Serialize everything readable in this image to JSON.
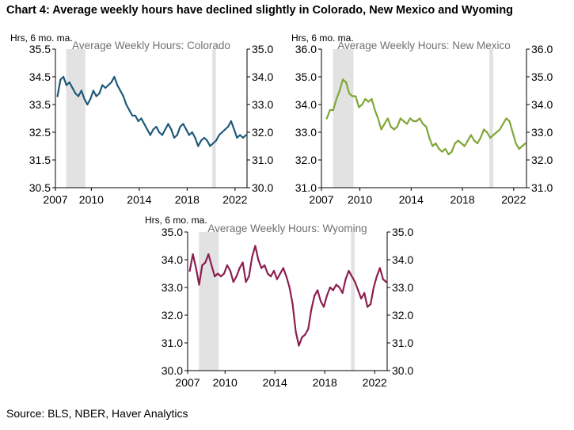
{
  "title": "Chart 4: Average weekly hours have declined slightly in Colorado, New Mexico and Wyoming",
  "source": "Source: BLS, NBER, Haver Analytics",
  "colors": {
    "recession": "#e2e2e2",
    "axis": "#000000"
  },
  "chart_data": [
    {
      "type": "line",
      "title": "Average Weekly Hours: Colorado",
      "ylabel": "Hrs, 6 mo. ma.",
      "ylim": [
        30.5,
        35.5
      ],
      "yticks_left": [
        "30.5",
        "31.5",
        "32.5",
        "33.5",
        "34.5",
        "35.5"
      ],
      "ylim_right": [
        30.0,
        35.0
      ],
      "yticks_right": [
        "30.0",
        "31.0",
        "32.0",
        "33.0",
        "34.0",
        "35.0"
      ],
      "xlim": [
        2007,
        2023
      ],
      "xticks": [
        "2007",
        "2010",
        "2014",
        "2018",
        "2022"
      ],
      "recessions": [
        [
          2007.9,
          2009.5
        ],
        [
          2020.1,
          2020.4
        ]
      ],
      "color": "#1f5a7a",
      "series": [
        {
          "x": [
            2007.17,
            2007.42,
            2007.67,
            2007.92,
            2008.17,
            2008.42,
            2008.67,
            2008.92,
            2009.17,
            2009.42,
            2009.67,
            2009.92,
            2010.17,
            2010.42,
            2010.67,
            2010.92,
            2011.17,
            2011.42,
            2011.67,
            2011.92,
            2012.17,
            2012.42,
            2012.67,
            2012.92,
            2013.17,
            2013.42,
            2013.67,
            2013.92,
            2014.17,
            2014.42,
            2014.67,
            2014.92,
            2015.17,
            2015.42,
            2015.67,
            2015.92,
            2016.17,
            2016.42,
            2016.67,
            2016.92,
            2017.17,
            2017.42,
            2017.67,
            2017.92,
            2018.17,
            2018.42,
            2018.67,
            2018.92,
            2019.17,
            2019.42,
            2019.67,
            2019.92,
            2020.17,
            2020.42,
            2020.67,
            2020.92,
            2021.17,
            2021.42,
            2021.67,
            2021.92,
            2022.17,
            2022.42,
            2022.67,
            2022.92
          ],
          "y": [
            33.8,
            34.4,
            34.5,
            34.2,
            34.3,
            34.1,
            33.9,
            33.8,
            34.0,
            33.7,
            33.5,
            33.7,
            34.0,
            33.8,
            33.9,
            34.2,
            34.1,
            34.2,
            34.3,
            34.5,
            34.2,
            34.0,
            33.8,
            33.5,
            33.3,
            33.1,
            33.1,
            32.9,
            33.0,
            32.8,
            32.6,
            32.4,
            32.6,
            32.7,
            32.5,
            32.4,
            32.6,
            32.8,
            32.6,
            32.3,
            32.4,
            32.7,
            32.8,
            32.6,
            32.4,
            32.5,
            32.3,
            32.0,
            32.2,
            32.3,
            32.2,
            32.0,
            32.1,
            32.2,
            32.4,
            32.5,
            32.6,
            32.7,
            32.9,
            32.6,
            32.3,
            32.4,
            32.3,
            32.4
          ]
        }
      ]
    },
    {
      "type": "line",
      "title": "Average Weekly Hours: New Mexico",
      "ylabel": "Hrs, 6 mo. ma.",
      "ylim": [
        31.0,
        36.0
      ],
      "yticks_left": [
        "31.0",
        "32.0",
        "33.0",
        "34.0",
        "35.0",
        "36.0"
      ],
      "ylim_right": [
        31.0,
        36.0
      ],
      "yticks_right": [
        "31.0",
        "32.0",
        "33.0",
        "34.0",
        "35.0",
        "36.0"
      ],
      "xlim": [
        2007,
        2023
      ],
      "xticks": [
        "2007",
        "2010",
        "2014",
        "2018",
        "2022"
      ],
      "recessions": [
        [
          2007.9,
          2009.5
        ],
        [
          2020.1,
          2020.4
        ]
      ],
      "color": "#7fa637",
      "series": [
        {
          "x": [
            2007.42,
            2007.67,
            2007.92,
            2008.17,
            2008.42,
            2008.67,
            2008.92,
            2009.17,
            2009.42,
            2009.67,
            2009.92,
            2010.17,
            2010.42,
            2010.67,
            2010.92,
            2011.17,
            2011.42,
            2011.67,
            2011.92,
            2012.17,
            2012.42,
            2012.67,
            2012.92,
            2013.17,
            2013.42,
            2013.67,
            2013.92,
            2014.17,
            2014.42,
            2014.67,
            2014.92,
            2015.17,
            2015.42,
            2015.67,
            2015.92,
            2016.17,
            2016.42,
            2016.67,
            2016.92,
            2017.17,
            2017.42,
            2017.67,
            2017.92,
            2018.17,
            2018.42,
            2018.67,
            2018.92,
            2019.17,
            2019.42,
            2019.67,
            2019.92,
            2020.17,
            2020.42,
            2020.67,
            2020.92,
            2021.17,
            2021.42,
            2021.67,
            2021.92,
            2022.17,
            2022.42,
            2022.67,
            2022.92
          ],
          "y": [
            33.5,
            33.8,
            33.8,
            34.2,
            34.5,
            34.9,
            34.8,
            34.4,
            34.3,
            34.3,
            33.9,
            34.0,
            34.2,
            34.1,
            34.2,
            33.8,
            33.5,
            33.1,
            33.3,
            33.5,
            33.2,
            33.1,
            33.2,
            33.5,
            33.4,
            33.3,
            33.5,
            33.4,
            33.4,
            33.5,
            33.3,
            33.2,
            32.8,
            32.5,
            32.6,
            32.4,
            32.3,
            32.4,
            32.2,
            32.3,
            32.6,
            32.7,
            32.6,
            32.5,
            32.7,
            32.9,
            32.7,
            32.6,
            32.8,
            33.1,
            33.0,
            32.8,
            32.9,
            33.0,
            33.1,
            33.3,
            33.5,
            33.4,
            33.0,
            32.6,
            32.4,
            32.5,
            32.6
          ]
        }
      ]
    },
    {
      "type": "line",
      "title": "Average Weekly Hours: Wyoming",
      "ylabel": "Hrs, 6 mo. ma.",
      "ylim": [
        30.0,
        35.0
      ],
      "yticks_left": [
        "30.0",
        "31.0",
        "32.0",
        "33.0",
        "34.0",
        "35.0"
      ],
      "ylim_right": [
        30.0,
        35.0
      ],
      "yticks_right": [
        "30.0",
        "31.0",
        "32.0",
        "33.0",
        "34.0",
        "35.0"
      ],
      "xlim": [
        2007,
        2023
      ],
      "xticks": [
        "2007",
        "2010",
        "2014",
        "2018",
        "2022"
      ],
      "recessions": [
        [
          2007.9,
          2009.5
        ],
        [
          2020.1,
          2020.4
        ]
      ],
      "color": "#8b1e50",
      "series": [
        {
          "x": [
            2007.17,
            2007.42,
            2007.67,
            2007.92,
            2008.17,
            2008.42,
            2008.67,
            2008.92,
            2009.17,
            2009.42,
            2009.67,
            2009.92,
            2010.17,
            2010.42,
            2010.67,
            2010.92,
            2011.17,
            2011.42,
            2011.67,
            2011.92,
            2012.17,
            2012.42,
            2012.67,
            2012.92,
            2013.17,
            2013.42,
            2013.67,
            2013.92,
            2014.17,
            2014.42,
            2014.67,
            2014.92,
            2015.17,
            2015.42,
            2015.67,
            2015.92,
            2016.17,
            2016.42,
            2016.67,
            2016.92,
            2017.17,
            2017.42,
            2017.67,
            2017.92,
            2018.17,
            2018.42,
            2018.67,
            2018.92,
            2019.17,
            2019.42,
            2019.67,
            2019.92,
            2020.17,
            2020.42,
            2020.67,
            2020.92,
            2021.17,
            2021.42,
            2021.67,
            2021.92,
            2022.17,
            2022.42,
            2022.67,
            2022.92
          ],
          "y": [
            33.6,
            34.2,
            33.7,
            33.1,
            33.8,
            33.9,
            34.2,
            33.8,
            33.4,
            33.5,
            33.4,
            33.5,
            33.8,
            33.6,
            33.2,
            33.4,
            33.7,
            33.9,
            33.2,
            33.4,
            34.1,
            34.5,
            34.0,
            33.7,
            33.8,
            33.5,
            33.4,
            33.6,
            33.3,
            33.5,
            33.7,
            33.4,
            33.0,
            32.4,
            31.4,
            30.9,
            31.2,
            31.3,
            31.5,
            32.2,
            32.7,
            32.9,
            32.5,
            32.3,
            32.7,
            33.0,
            32.9,
            33.1,
            33.0,
            32.8,
            33.3,
            33.6,
            33.4,
            33.2,
            32.9,
            32.6,
            32.8,
            32.3,
            32.4,
            33.0,
            33.4,
            33.7,
            33.3,
            33.2
          ]
        }
      ]
    }
  ]
}
